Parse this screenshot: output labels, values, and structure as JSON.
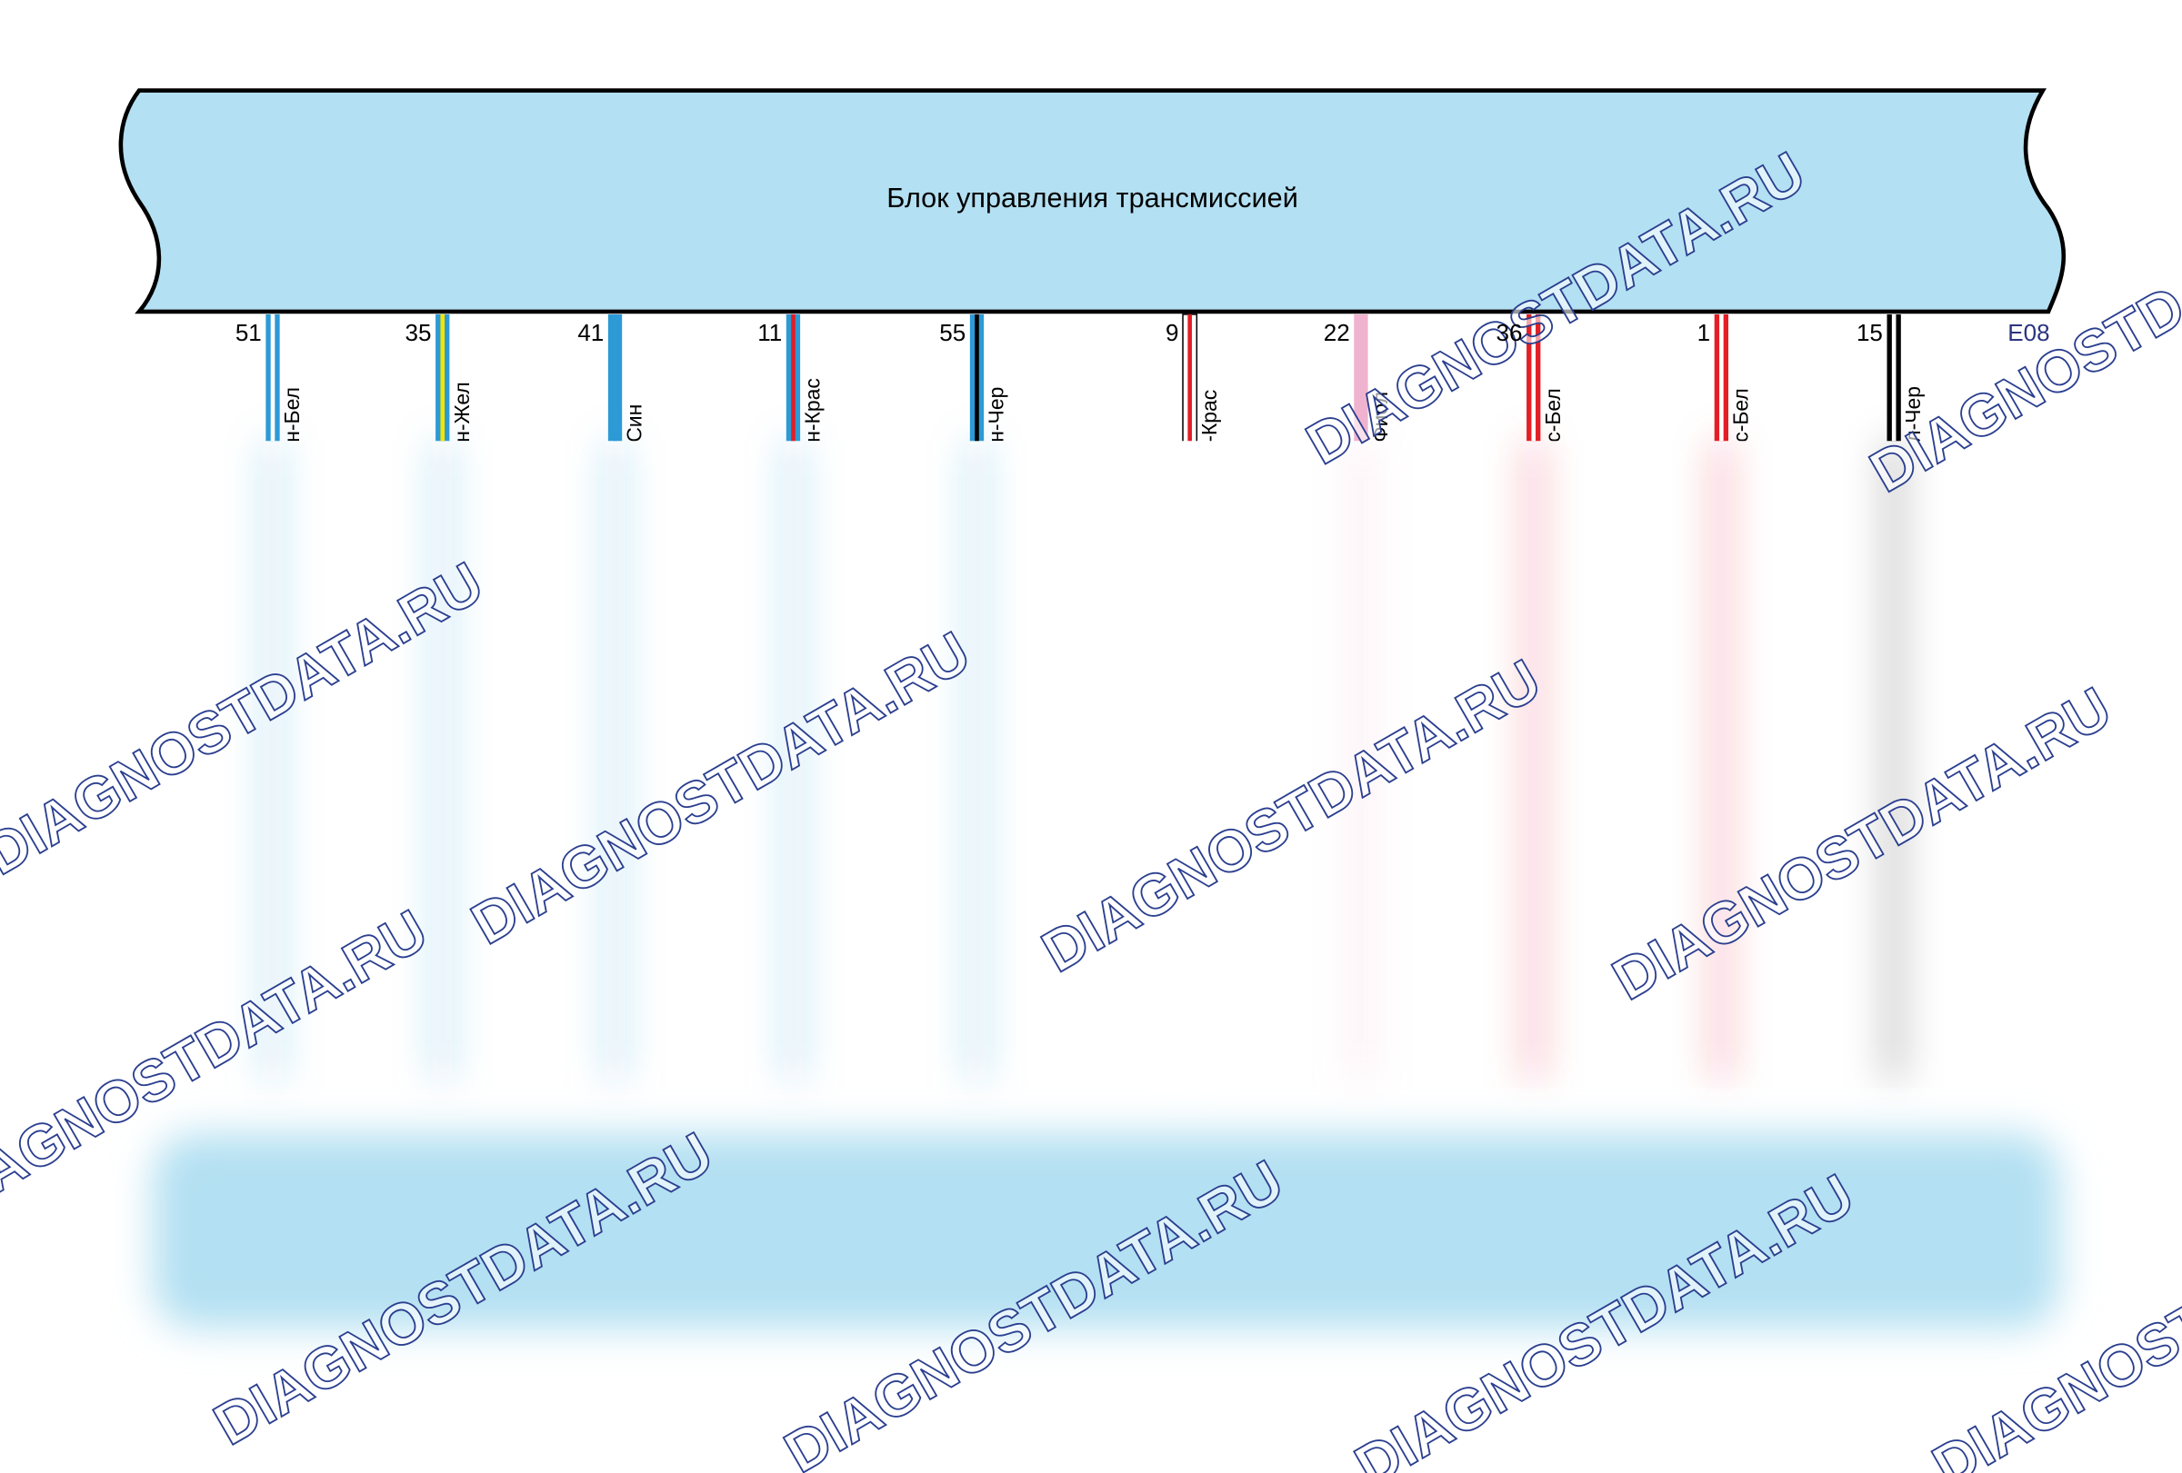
{
  "block": {
    "title": "Блок управления трансмиссией",
    "connector": "E08"
  },
  "pins": [
    {
      "number": "51",
      "label": "н-Бел",
      "base": "#2d9ad6",
      "stripe": "#ffffff"
    },
    {
      "number": "35",
      "label": "н-Жел",
      "base": "#2d9ad6",
      "stripe": "#f2e600"
    },
    {
      "number": "41",
      "label": "Син",
      "base": "#2d9ad6",
      "stripe": "#2d9ad6"
    },
    {
      "number": "11",
      "label": "н-Крас",
      "base": "#2d9ad6",
      "stripe": "#e31e24"
    },
    {
      "number": "55",
      "label": "н-Чер",
      "base": "#2d9ad6",
      "stripe": "#000000"
    },
    {
      "number": "9",
      "label": "-Крас",
      "base": "#ffffff",
      "stripe": "#e31e24"
    },
    {
      "number": "22",
      "label": "Фиол",
      "base": "#f0b3cf",
      "stripe": "#f0b3cf"
    },
    {
      "number": "36",
      "label": "с-Бел",
      "base": "#e31e24",
      "stripe": "#ffffff"
    },
    {
      "number": "1",
      "label": "с-Бел",
      "base": "#e31e24",
      "stripe": "#ffffff"
    },
    {
      "number": "15",
      "label": "л-Чер",
      "base": "#000000",
      "stripe": "#ffffff"
    }
  ],
  "watermark": "DIAGNOSTDATA.RU"
}
